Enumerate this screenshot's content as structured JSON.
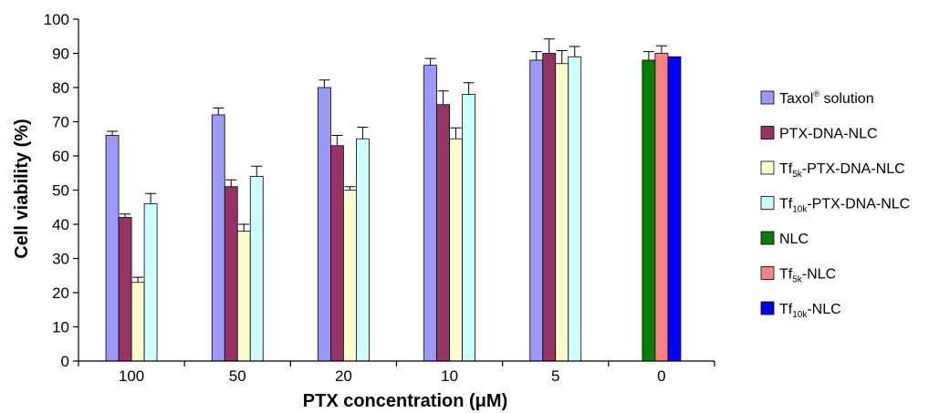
{
  "chart_data": {
    "type": "bar",
    "xlabel": "PTX concentration (μM)",
    "ylabel": "Cell viability (%)",
    "ylim": [
      0,
      100
    ],
    "yticks": [
      0,
      10,
      20,
      30,
      40,
      50,
      60,
      70,
      80,
      90,
      100
    ],
    "categories": [
      "100",
      "50",
      "20",
      "10",
      "5",
      "0"
    ],
    "legend_position": "right",
    "series": [
      {
        "name": "Taxol® solution",
        "legend": {
          "main": "Taxol",
          "sup": "®",
          "post": " solution"
        },
        "color": "#9999ff",
        "values": [
          66,
          72,
          80,
          86.5,
          88,
          null
        ],
        "errors": [
          1.2,
          2,
          2.2,
          2,
          2.5,
          null
        ]
      },
      {
        "name": "PTX-DNA-NLC",
        "legend": {
          "main": "PTX-DNA-NLC"
        },
        "color": "#993366",
        "values": [
          42,
          51,
          63,
          75,
          90,
          null
        ],
        "errors": [
          1,
          2,
          3,
          4,
          4.2,
          null
        ]
      },
      {
        "name": "Tf5k-PTX-DNA-NLC",
        "legend": {
          "main": "Tf",
          "sub": "5k",
          "post": "-PTX-DNA-NLC"
        },
        "color": "#ffffcc",
        "values": [
          23,
          38,
          50,
          65,
          87,
          null
        ],
        "errors": [
          1.5,
          2,
          1,
          3.2,
          3.8,
          null
        ]
      },
      {
        "name": "Tf10k-PTX-DNA-NLC",
        "legend": {
          "main": "Tf",
          "sub": "10k",
          "post": "-PTX-DNA-NLC"
        },
        "color": "#ccffff",
        "values": [
          46,
          54,
          65,
          78,
          89,
          null
        ],
        "errors": [
          3,
          3,
          3.4,
          3.4,
          3,
          null
        ]
      },
      {
        "name": "NLC",
        "legend": {
          "main": "NLC"
        },
        "color": "#008000",
        "values": [
          null,
          null,
          null,
          null,
          null,
          88
        ],
        "errors": [
          null,
          null,
          null,
          null,
          null,
          2.5
        ]
      },
      {
        "name": "Tf5k-NLC",
        "legend": {
          "main": "Tf",
          "sub": "5k",
          "post": "-NLC"
        },
        "color": "#ff8080",
        "values": [
          null,
          null,
          null,
          null,
          null,
          90
        ],
        "errors": [
          null,
          null,
          null,
          null,
          null,
          2.2
        ]
      },
      {
        "name": "Tf10k-NLC",
        "legend": {
          "main": "Tf",
          "sub": "10k",
          "post": "-NLC"
        },
        "color": "#0000ff",
        "values": [
          null,
          null,
          null,
          null,
          null,
          89
        ],
        "errors": [
          null,
          null,
          null,
          null,
          null,
          0
        ]
      }
    ]
  }
}
